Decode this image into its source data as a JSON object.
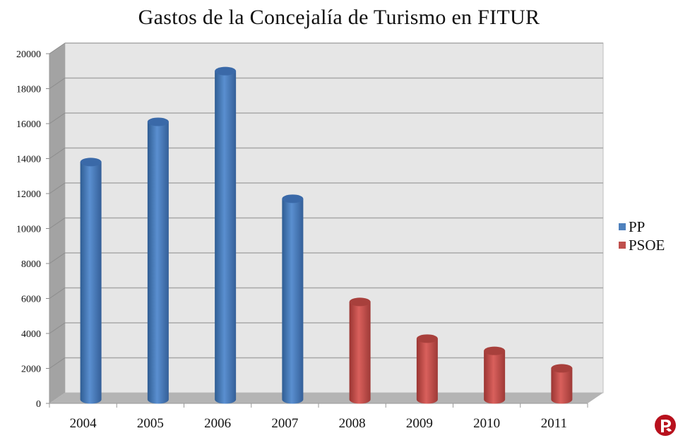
{
  "title": "Gastos de la Concejalía de Turismo en FITUR",
  "legend": [
    {
      "label": "PP",
      "color": "#4F81BD"
    },
    {
      "label": "PSOE",
      "color": "#C0504D"
    }
  ],
  "logo": "round-red-logo-icon",
  "chart_data": {
    "type": "bar",
    "style": "3d-cylinder",
    "title": "Gastos de la Concejalía de Turismo en FITUR",
    "xlabel": "",
    "ylabel": "",
    "ylim": [
      0,
      20000
    ],
    "yticks": [
      0,
      2000,
      4000,
      6000,
      8000,
      10000,
      12000,
      14000,
      16000,
      18000,
      20000
    ],
    "grid": true,
    "legend_position": "right",
    "categories": [
      "2004",
      "2005",
      "2006",
      "2007",
      "2008",
      "2009",
      "2010",
      "2011"
    ],
    "series": [
      {
        "name": "PP",
        "color": "#4F81BD",
        "values": [
          13500,
          15800,
          18700,
          11400,
          null,
          null,
          null,
          null
        ]
      },
      {
        "name": "PSOE",
        "color": "#C0504D",
        "values": [
          null,
          null,
          null,
          null,
          5500,
          3400,
          2700,
          1700
        ]
      }
    ]
  }
}
